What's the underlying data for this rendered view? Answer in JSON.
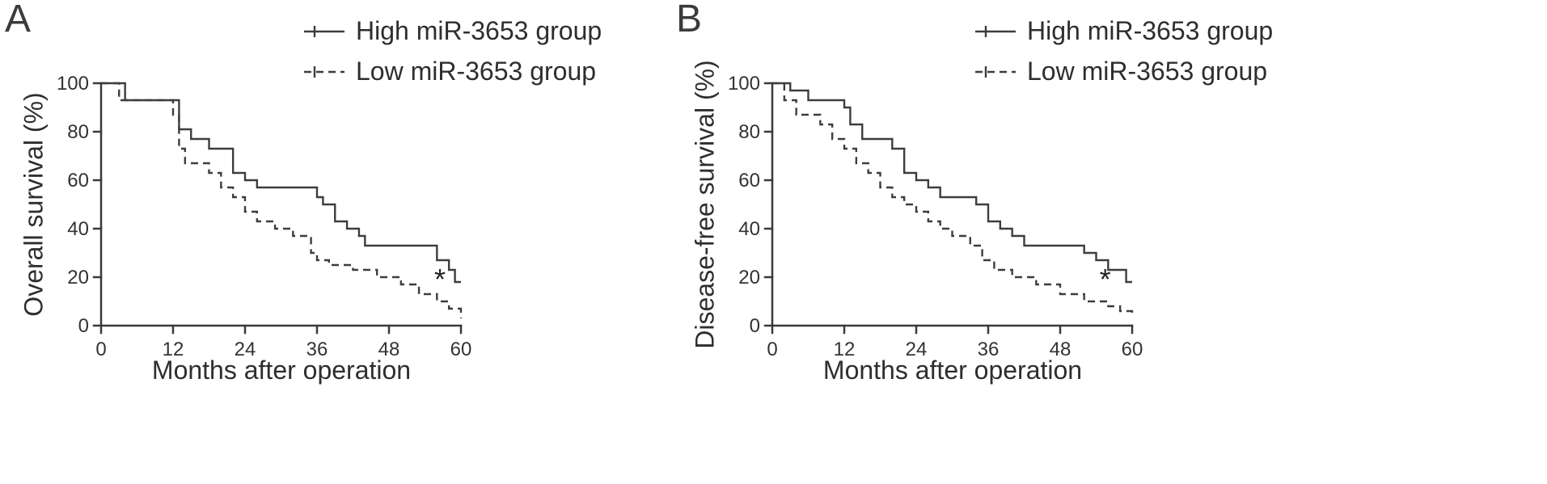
{
  "figure": {
    "panels": [
      {
        "label": "A",
        "ylabel": "Overall survival (%)",
        "xlabel": "Months after operation"
      },
      {
        "label": "B",
        "ylabel": "Disease-free survival (%)",
        "xlabel": "Months after operation"
      }
    ],
    "line_color": "#3d3d3d"
  },
  "chart_data": [
    {
      "type": "line",
      "title": "A",
      "subtitle": "Kaplan-Meier step curves",
      "xlabel": "Months after operation",
      "ylabel": "Overall survival (%)",
      "xlim": [
        0,
        60
      ],
      "ylim": [
        0,
        100
      ],
      "xticks": [
        0,
        12,
        24,
        36,
        48,
        60
      ],
      "yticks": [
        0,
        20,
        40,
        60,
        80,
        100
      ],
      "grid": false,
      "legend_position": "top-right",
      "annotation": {
        "text": "*",
        "x": 56.5,
        "y": 19
      },
      "series": [
        {
          "name": "High miR-3653 group",
          "style": "solid",
          "step": true,
          "x": [
            0,
            4,
            13,
            15,
            18,
            22,
            24,
            26,
            36,
            37,
            39,
            41,
            43,
            44,
            56,
            58,
            59,
            60
          ],
          "y": [
            100,
            93,
            81,
            77,
            73,
            63,
            60,
            57,
            53,
            50,
            43,
            40,
            37,
            33,
            27,
            23,
            18,
            18
          ]
        },
        {
          "name": "Low miR-3653 group",
          "style": "dashed",
          "step": true,
          "x": [
            0,
            3,
            12,
            13,
            14,
            18,
            20,
            22,
            24,
            26,
            29,
            32,
            35,
            36,
            38,
            42,
            46,
            50,
            53,
            56,
            58,
            60
          ],
          "y": [
            100,
            93,
            87,
            73,
            67,
            63,
            57,
            53,
            47,
            43,
            40,
            37,
            30,
            27,
            25,
            23,
            20,
            17,
            13,
            10,
            7,
            3
          ]
        }
      ]
    },
    {
      "type": "line",
      "title": "B",
      "subtitle": "Kaplan-Meier step curves",
      "xlabel": "Months after operation",
      "ylabel": "Disease-free survival (%)",
      "xlim": [
        0,
        60
      ],
      "ylim": [
        0,
        100
      ],
      "xticks": [
        0,
        12,
        24,
        36,
        48,
        60
      ],
      "yticks": [
        0,
        20,
        40,
        60,
        80,
        100
      ],
      "grid": false,
      "legend_position": "top-right",
      "annotation": {
        "text": "*",
        "x": 55.5,
        "y": 19
      },
      "series": [
        {
          "name": "High miR-3653 group",
          "style": "solid",
          "step": true,
          "x": [
            0,
            3,
            6,
            12,
            13,
            15,
            20,
            22,
            24,
            26,
            28,
            34,
            36,
            38,
            40,
            42,
            52,
            54,
            56,
            59,
            60
          ],
          "y": [
            100,
            97,
            93,
            90,
            83,
            77,
            73,
            63,
            60,
            57,
            53,
            50,
            43,
            40,
            37,
            33,
            30,
            27,
            23,
            18,
            18
          ]
        },
        {
          "name": "Low miR-3653 group",
          "style": "dashed",
          "step": true,
          "x": [
            0,
            2,
            4,
            8,
            10,
            12,
            14,
            16,
            18,
            20,
            22,
            24,
            26,
            28,
            30,
            33,
            35,
            37,
            40,
            44,
            48,
            52,
            56,
            58,
            60
          ],
          "y": [
            100,
            93,
            87,
            83,
            77,
            73,
            67,
            63,
            57,
            53,
            50,
            47,
            43,
            40,
            37,
            33,
            27,
            23,
            20,
            17,
            13,
            10,
            8,
            6,
            4
          ]
        }
      ]
    }
  ]
}
